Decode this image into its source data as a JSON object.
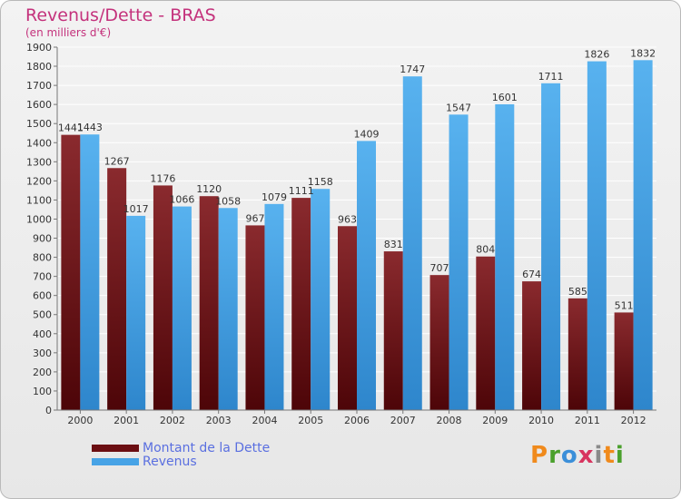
{
  "header": {
    "title": "Revenus/Dette - BRAS",
    "subtitle": "(en milliers d'€)"
  },
  "legend": [
    {
      "label": "Montant de la Dette",
      "color": "#6b0e12"
    },
    {
      "label": "Revenus",
      "color": "#47a3e6"
    }
  ],
  "logo": {
    "text": "Proxiti",
    "letters": [
      "P",
      "r",
      "o",
      "x",
      "i",
      "t",
      "i"
    ],
    "colors": [
      "#f08a1c",
      "#4aa02c",
      "#3b8fd9",
      "#d8345f",
      "#8a8a8a",
      "#f08a1c",
      "#4aa02c"
    ]
  },
  "chart_data": {
    "type": "bar",
    "title": "Revenus/Dette - BRAS",
    "subtitle": "(en milliers d'€)",
    "categories": [
      "2000",
      "2001",
      "2002",
      "2003",
      "2004",
      "2005",
      "2006",
      "2007",
      "2008",
      "2009",
      "2010",
      "2011",
      "2012"
    ],
    "series": [
      {
        "name": "Montant de la Dette",
        "color": "#6b0e12",
        "values": [
          1441,
          1267,
          1176,
          1120,
          967,
          1111,
          963,
          831,
          707,
          804,
          674,
          585,
          511
        ],
        "labels": [
          "1441",
          "1267",
          "1176",
          "1120",
          "967",
          "1111",
          "963",
          "831",
          "707",
          "804",
          "674",
          "585",
          "511"
        ]
      },
      {
        "name": "Revenus",
        "color": "#47a3e6",
        "values": [
          1443,
          1017,
          1066,
          1058,
          1079,
          1158,
          1409,
          1747,
          1547,
          1601,
          1711,
          1826,
          1832
        ],
        "labels": [
          "1443",
          "1017",
          "1066",
          "1058",
          "1079",
          "1158",
          "1409",
          "1747",
          "1547",
          "1601",
          "1711",
          "1826",
          "1832"
        ]
      }
    ],
    "ylim": [
      0,
      1900
    ],
    "yticks": [
      0,
      100,
      200,
      300,
      400,
      500,
      600,
      700,
      800,
      900,
      1000,
      1100,
      1200,
      1300,
      1400,
      1500,
      1600,
      1700,
      1800,
      1900
    ],
    "grid": true,
    "legend_position": "bottom-left"
  }
}
